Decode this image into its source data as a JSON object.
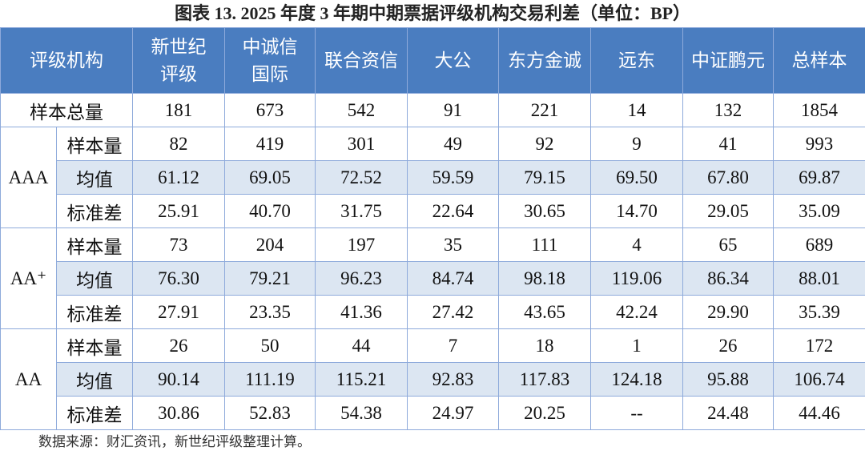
{
  "header": {
    "title": "图表 13.   2025 年度 3 年期中期票据评级机构交易利差（单位：BP）"
  },
  "table": {
    "corner": "评级机构",
    "columns": [
      [
        "新世纪",
        "评级"
      ],
      [
        "中诚信",
        "国际"
      ],
      [
        "联合资信"
      ],
      [
        "大公"
      ],
      [
        "东方金诚"
      ],
      [
        "远东"
      ],
      [
        "中证鹏元"
      ],
      [
        "总样本"
      ]
    ],
    "total": {
      "label": "样本总量",
      "values": [
        "181",
        "673",
        "542",
        "91",
        "221",
        "14",
        "132",
        "1854"
      ]
    },
    "groups": [
      {
        "name": "AAA",
        "rows": [
          {
            "label": "样本量",
            "values": [
              "82",
              "419",
              "301",
              "49",
              "92",
              "9",
              "41",
              "993"
            ]
          },
          {
            "label": "均值",
            "values": [
              "61.12",
              "69.05",
              "72.52",
              "59.59",
              "79.15",
              "69.50",
              "67.80",
              "69.87"
            ]
          },
          {
            "label": "标准差",
            "values": [
              "25.91",
              "40.70",
              "31.75",
              "22.64",
              "30.65",
              "14.70",
              "29.05",
              "35.09"
            ]
          }
        ]
      },
      {
        "name": "AA⁺",
        "rows": [
          {
            "label": "样本量",
            "values": [
              "73",
              "204",
              "197",
              "35",
              "111",
              "4",
              "65",
              "689"
            ]
          },
          {
            "label": "均值",
            "values": [
              "76.30",
              "79.21",
              "96.23",
              "84.74",
              "98.18",
              "119.06",
              "86.34",
              "88.01"
            ]
          },
          {
            "label": "标准差",
            "values": [
              "27.91",
              "23.35",
              "41.36",
              "27.42",
              "43.65",
              "42.24",
              "29.90",
              "35.39"
            ]
          }
        ]
      },
      {
        "name": "AA",
        "rows": [
          {
            "label": "样本量",
            "values": [
              "26",
              "50",
              "44",
              "7",
              "18",
              "1",
              "26",
              "172"
            ]
          },
          {
            "label": "均值",
            "values": [
              "90.14",
              "111.19",
              "115.21",
              "92.83",
              "117.83",
              "124.18",
              "95.88",
              "106.74"
            ]
          },
          {
            "label": "标准差",
            "values": [
              "30.86",
              "52.83",
              "54.38",
              "24.97",
              "20.25",
              "--",
              "24.48",
              "44.46"
            ]
          }
        ]
      }
    ]
  },
  "footer": {
    "source": "数据来源：财汇资讯，新世纪评级整理计算。"
  }
}
